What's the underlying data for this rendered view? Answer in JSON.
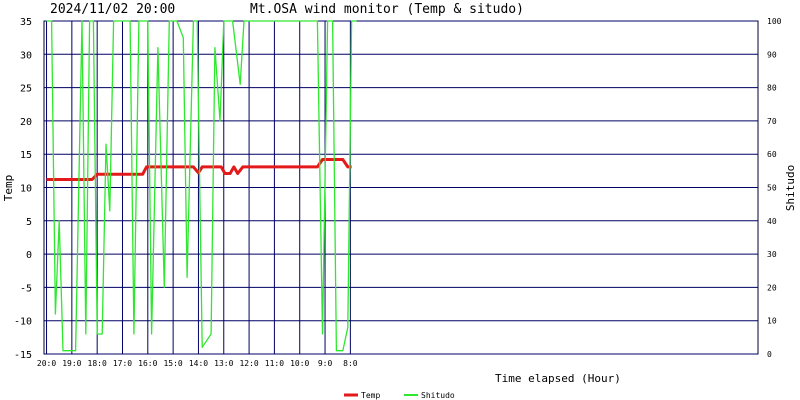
{
  "header": {
    "datetime": "2024/11/02 20:00",
    "title": "Mt.OSA wind monitor (Temp & situdo)"
  },
  "chart_data": {
    "type": "line",
    "title": "Mt.OSA wind monitor (Temp & situdo)",
    "xlabel": "Time elapsed (Hour)",
    "ylabel_left": "Temp",
    "ylabel_right": "Shitudo",
    "x_unit": "hours ago",
    "xlim": [
      20.1,
      -8.1
    ],
    "x_ticks": [
      {
        "value": 20,
        "label": "20:0"
      },
      {
        "value": 19,
        "label": "19:0"
      },
      {
        "value": 18,
        "label": "18:0"
      },
      {
        "value": 17,
        "label": "17:0"
      },
      {
        "value": 16,
        "label": "16:0"
      },
      {
        "value": 15,
        "label": "15:0"
      },
      {
        "value": 14,
        "label": "14:0"
      },
      {
        "value": 13,
        "label": "13:0"
      },
      {
        "value": 12,
        "label": "12:0"
      },
      {
        "value": 11,
        "label": "11:0"
      },
      {
        "value": 10,
        "label": "10:0"
      },
      {
        "value": 9,
        "label": "9:0"
      },
      {
        "value": 8,
        "label": "8:0"
      }
    ],
    "ylim_left": [
      -15,
      35
    ],
    "y_ticks_left": [
      -15,
      -10,
      -5,
      0,
      5,
      10,
      15,
      20,
      25,
      30,
      35
    ],
    "ylim_right": [
      0,
      100
    ],
    "y_ticks_right": [
      0,
      10,
      20,
      30,
      40,
      50,
      60,
      70,
      80,
      90,
      100
    ],
    "grid": true,
    "legend_position": "bottom",
    "series": [
      {
        "name": "Temp",
        "axis": "left",
        "color": "#e41a1a",
        "points": [
          [
            20.0,
            11.2
          ],
          [
            18.2,
            11.2
          ],
          [
            18.0,
            12.0
          ],
          [
            16.2,
            12.0
          ],
          [
            16.05,
            13.1
          ],
          [
            14.2,
            13.1
          ],
          [
            14.0,
            12.2
          ],
          [
            13.85,
            13.1
          ],
          [
            13.1,
            13.1
          ],
          [
            12.95,
            12.1
          ],
          [
            12.75,
            12.1
          ],
          [
            12.6,
            13.1
          ],
          [
            12.45,
            12.1
          ],
          [
            12.25,
            13.1
          ],
          [
            9.3,
            13.1
          ],
          [
            9.1,
            14.2
          ],
          [
            8.3,
            14.2
          ],
          [
            8.1,
            13.1
          ],
          [
            7.95,
            13.1
          ]
        ]
      },
      {
        "name": "Shitudo",
        "axis": "right",
        "color": "#2de82d",
        "points": [
          [
            20.0,
            100
          ],
          [
            19.8,
            100
          ],
          [
            19.65,
            12
          ],
          [
            19.5,
            40
          ],
          [
            19.35,
            1
          ],
          [
            18.85,
            1
          ],
          [
            18.6,
            100
          ],
          [
            18.45,
            6
          ],
          [
            18.3,
            100
          ],
          [
            18.15,
            100
          ],
          [
            18.0,
            6
          ],
          [
            17.8,
            6
          ],
          [
            17.65,
            63
          ],
          [
            17.5,
            43
          ],
          [
            17.35,
            100
          ],
          [
            16.7,
            100
          ],
          [
            16.55,
            6
          ],
          [
            16.35,
            100
          ],
          [
            16.0,
            100
          ],
          [
            15.85,
            6
          ],
          [
            15.6,
            92
          ],
          [
            15.35,
            20
          ],
          [
            15.15,
            100
          ],
          [
            14.85,
            100
          ],
          [
            14.6,
            95
          ],
          [
            14.45,
            23
          ],
          [
            14.2,
            100
          ],
          [
            14.05,
            100
          ],
          [
            13.85,
            2
          ],
          [
            13.5,
            6
          ],
          [
            13.35,
            92
          ],
          [
            13.15,
            70
          ],
          [
            13.0,
            100
          ],
          [
            12.65,
            100
          ],
          [
            12.35,
            81
          ],
          [
            12.2,
            100
          ],
          [
            9.3,
            100
          ],
          [
            9.1,
            6
          ],
          [
            8.9,
            100
          ],
          [
            8.7,
            100
          ],
          [
            8.55,
            1
          ],
          [
            8.3,
            1
          ],
          [
            8.1,
            8
          ],
          [
            7.95,
            100
          ],
          [
            7.75,
            100
          ]
        ]
      }
    ]
  }
}
